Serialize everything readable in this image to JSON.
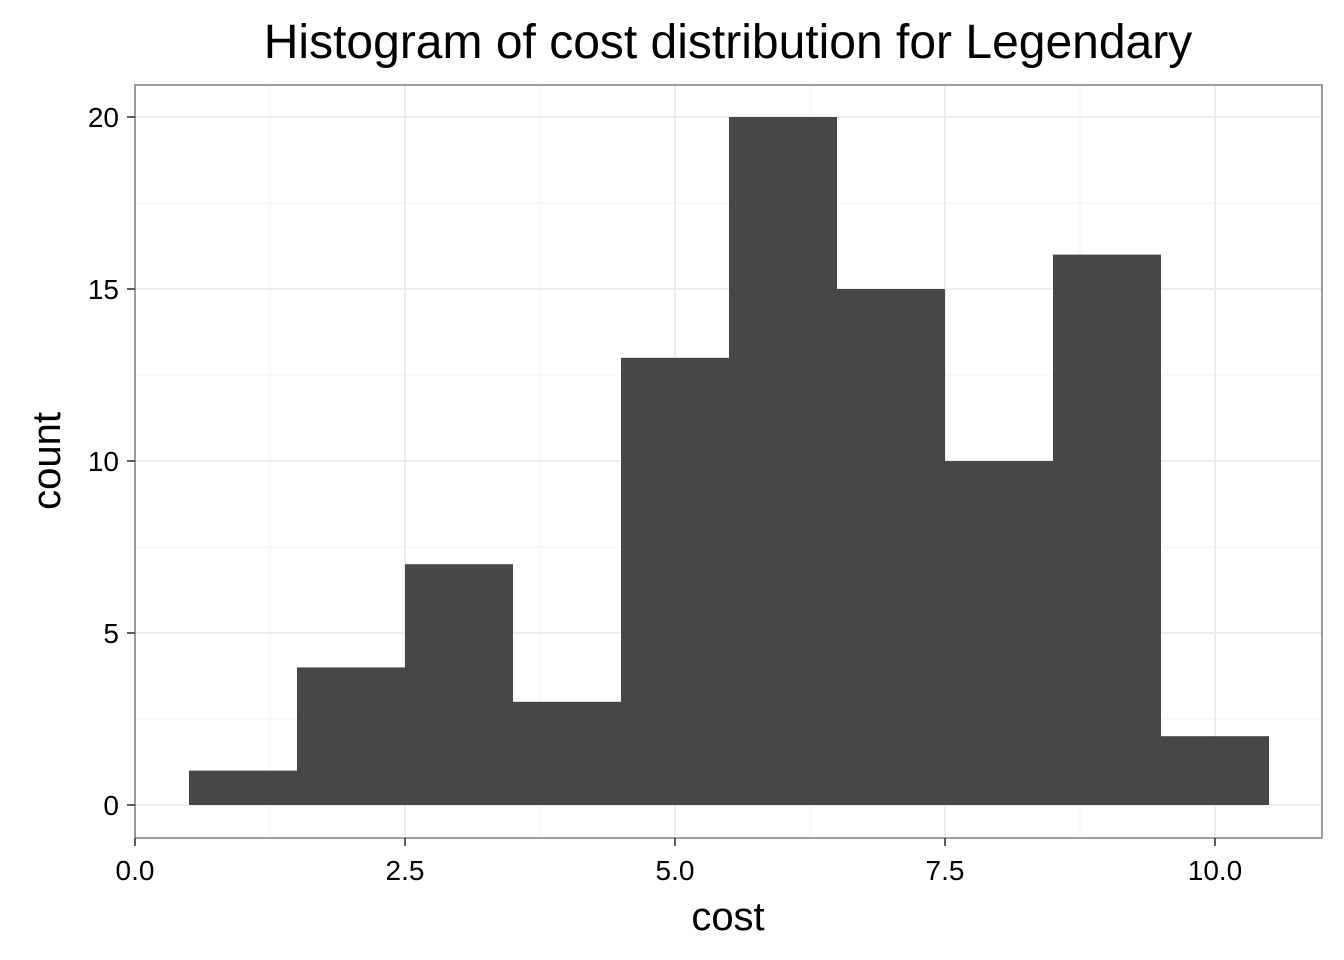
{
  "chart_data": {
    "type": "bar",
    "subtype": "histogram",
    "title": "Histogram of cost distribution for Legendary",
    "xlabel": "cost",
    "ylabel": "count",
    "bins": [
      {
        "x0": 0.5,
        "x1": 1.5,
        "count": 1
      },
      {
        "x0": 1.5,
        "x1": 2.5,
        "count": 4
      },
      {
        "x0": 2.5,
        "x1": 3.5,
        "count": 7
      },
      {
        "x0": 3.5,
        "x1": 4.5,
        "count": 3
      },
      {
        "x0": 4.5,
        "x1": 5.5,
        "count": 13
      },
      {
        "x0": 5.5,
        "x1": 6.5,
        "count": 20
      },
      {
        "x0": 6.5,
        "x1": 7.5,
        "count": 15
      },
      {
        "x0": 7.5,
        "x1": 8.5,
        "count": 10
      },
      {
        "x0": 8.5,
        "x1": 9.5,
        "count": 16
      },
      {
        "x0": 9.5,
        "x1": 10.5,
        "count": 2
      }
    ],
    "xlim": [
      0.0,
      10.5
    ],
    "ylim": [
      0,
      20
    ],
    "xticks": [
      {
        "value": 0.0,
        "label": "0.0"
      },
      {
        "value": 2.5,
        "label": "2.5"
      },
      {
        "value": 5.0,
        "label": "5.0"
      },
      {
        "value": 7.5,
        "label": "7.5"
      },
      {
        "value": 10.0,
        "label": "10.0"
      }
    ],
    "yticks": [
      {
        "value": 0,
        "label": "0"
      },
      {
        "value": 5,
        "label": "5"
      },
      {
        "value": 10,
        "label": "10"
      },
      {
        "value": 15,
        "label": "15"
      },
      {
        "value": 20,
        "label": "20"
      }
    ],
    "grid": true,
    "legend": "none",
    "colors": {
      "bar": "#474747",
      "grid_major": "#ebebeb",
      "grid_minor": "#f5f5f5",
      "panel_border": "#7f7f7f",
      "tick": "#333333",
      "background": "#ffffff"
    }
  }
}
